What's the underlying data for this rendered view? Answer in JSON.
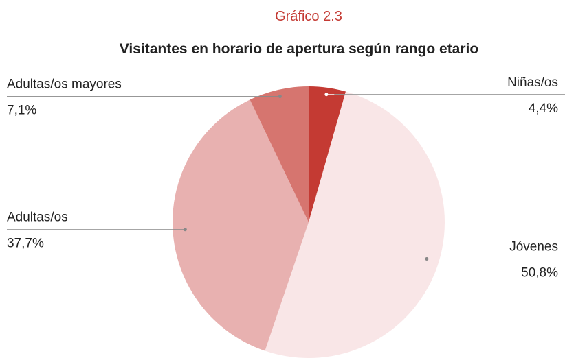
{
  "chart_data": {
    "type": "pie",
    "subtitle": "Gráfico 2.3",
    "title": "Visitantes en horario de apertura según rango etario",
    "categories": [
      "Niñas/os",
      "Jóvenes",
      "Adultas/os",
      "Adultas/os mayores"
    ],
    "values": [
      4.4,
      50.8,
      37.7,
      7.1
    ],
    "value_labels": [
      "4,4%",
      "50,8%",
      "37,7%",
      "7,1%"
    ],
    "colors": [
      "#c43a33",
      "#f9e6e7",
      "#e8b1b0",
      "#d6756f"
    ]
  }
}
